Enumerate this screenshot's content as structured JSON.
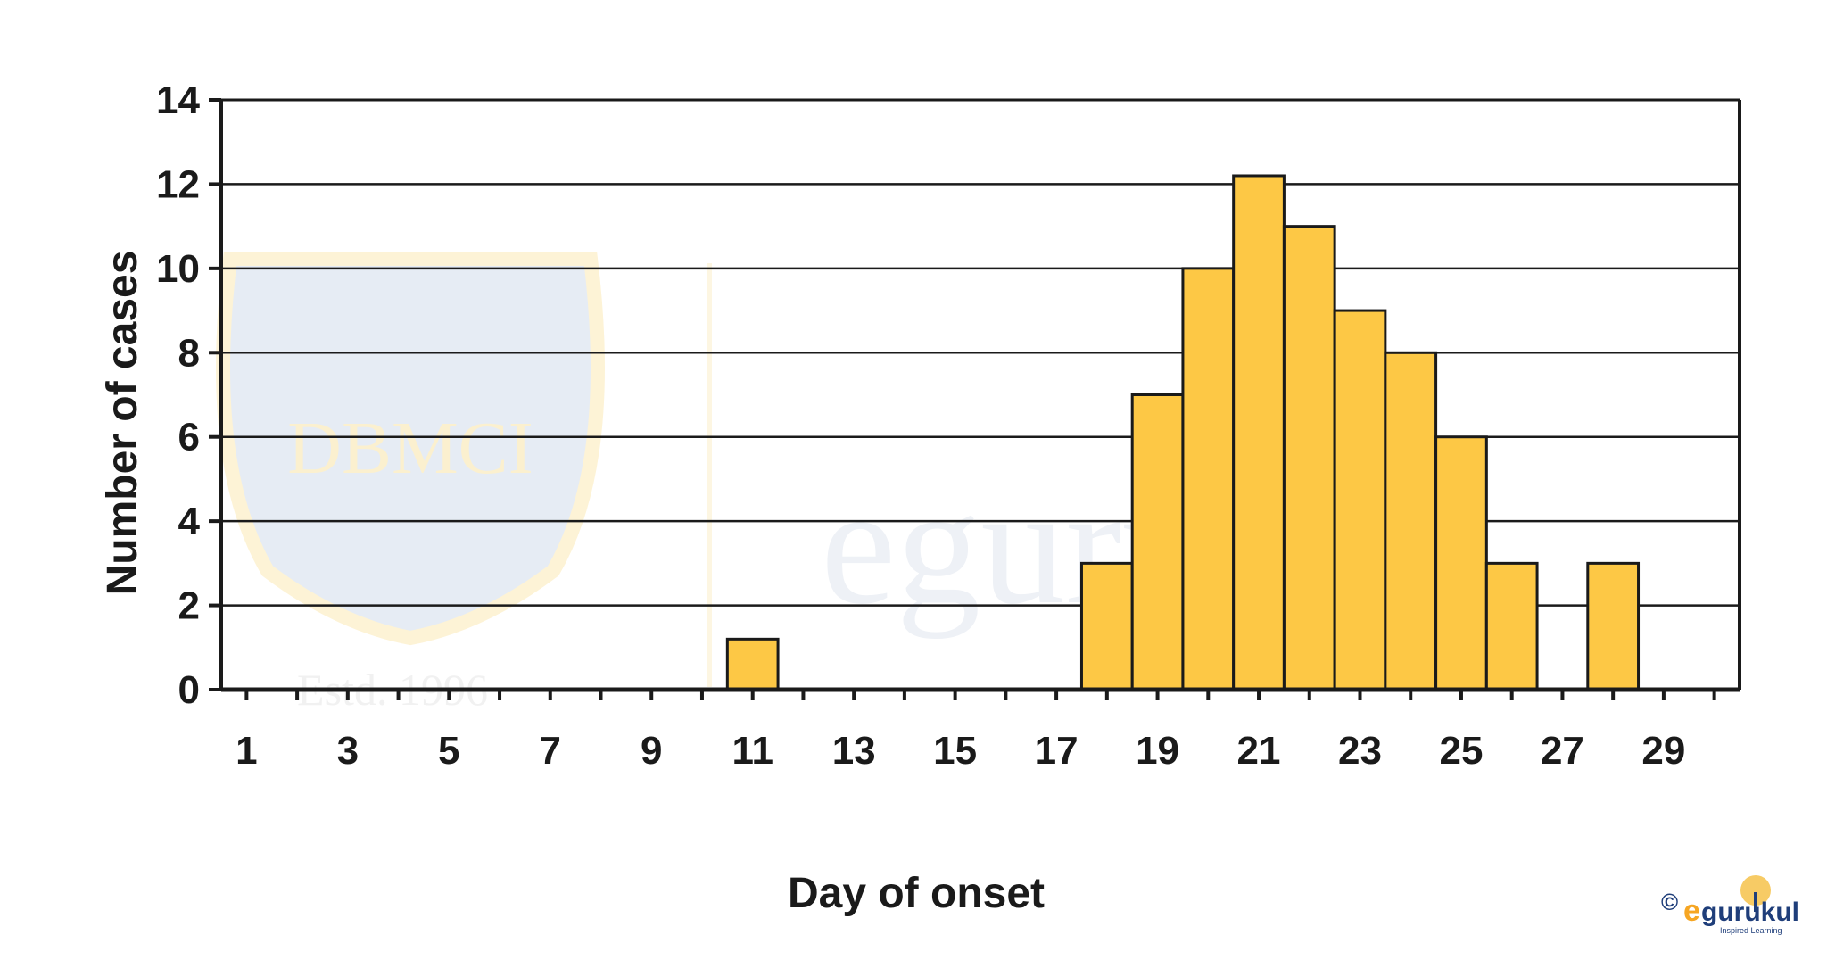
{
  "chart_data": {
    "type": "bar",
    "title": "",
    "xlabel": "Day of onset",
    "ylabel": "Number of cases",
    "x_tick_labels": [
      "1",
      "3",
      "5",
      "7",
      "9",
      "11",
      "13",
      "15",
      "17",
      "19",
      "21",
      "23",
      "25",
      "27",
      "29"
    ],
    "y_tick_labels": [
      "0",
      "2",
      "4",
      "6",
      "8",
      "10",
      "12",
      "14"
    ],
    "ylim": [
      0,
      14
    ],
    "xlim": [
      0.5,
      30.5
    ],
    "grid": true,
    "bar_color": "#FDC845",
    "bars": [
      {
        "day": 11,
        "value": 1.2
      },
      {
        "day": 18,
        "value": 3
      },
      {
        "day": 19,
        "value": 7
      },
      {
        "day": 20,
        "value": 10
      },
      {
        "day": 21,
        "value": 12.2
      },
      {
        "day": 22,
        "value": 11
      },
      {
        "day": 23,
        "value": 9
      },
      {
        "day": 24,
        "value": 8
      },
      {
        "day": 25,
        "value": 6
      },
      {
        "day": 26,
        "value": 3
      },
      {
        "day": 28,
        "value": 3
      }
    ]
  },
  "watermark": {
    "seal_text": "DBMCI",
    "estd_text": "Estd. 1996",
    "brand_text": "egurukul"
  },
  "logo": {
    "copyright": "©",
    "brand_e": "e",
    "brand_rest": "gurukul",
    "tagline": "Inspired Learning"
  },
  "colors": {
    "accent_orange": "#F6A623",
    "brand_blue": "#1F3E7A"
  }
}
